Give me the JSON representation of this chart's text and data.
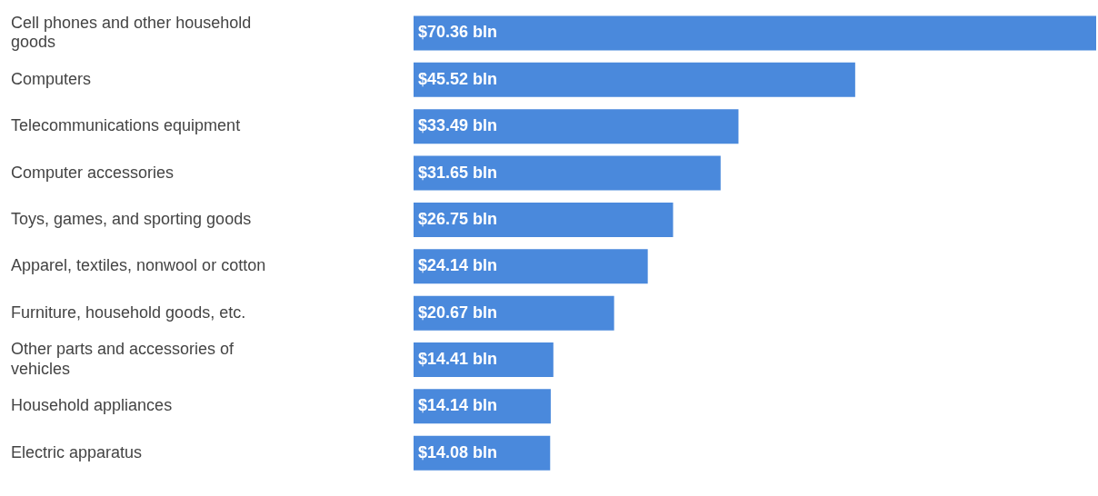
{
  "chart_data": {
    "type": "bar",
    "orientation": "horizontal",
    "tick_labels": "y",
    "categories": [
      "Cell phones and other household goods",
      "Computers",
      "Telecommunications equipment",
      "Computer accessories",
      "Toys, games, and sporting goods",
      "Apparel, textiles, nonwool or cotton",
      "Furniture, household goods, etc.",
      "Other parts and accessories of vehicles",
      "Household appliances",
      "Electric apparatus"
    ],
    "values": [
      70.36,
      45.52,
      33.49,
      31.65,
      26.75,
      24.14,
      20.67,
      14.41,
      14.14,
      14.08
    ],
    "value_labels": [
      "$70.36 bln",
      "$45.52 bln",
      "$33.49 bln",
      "$31.65 bln",
      "$26.75 bln",
      "$24.14 bln",
      "$20.67 bln",
      "$14.41 bln",
      "$14.14 bln",
      "$14.08 bln"
    ],
    "color": "#4a89dc",
    "legend": false
  }
}
